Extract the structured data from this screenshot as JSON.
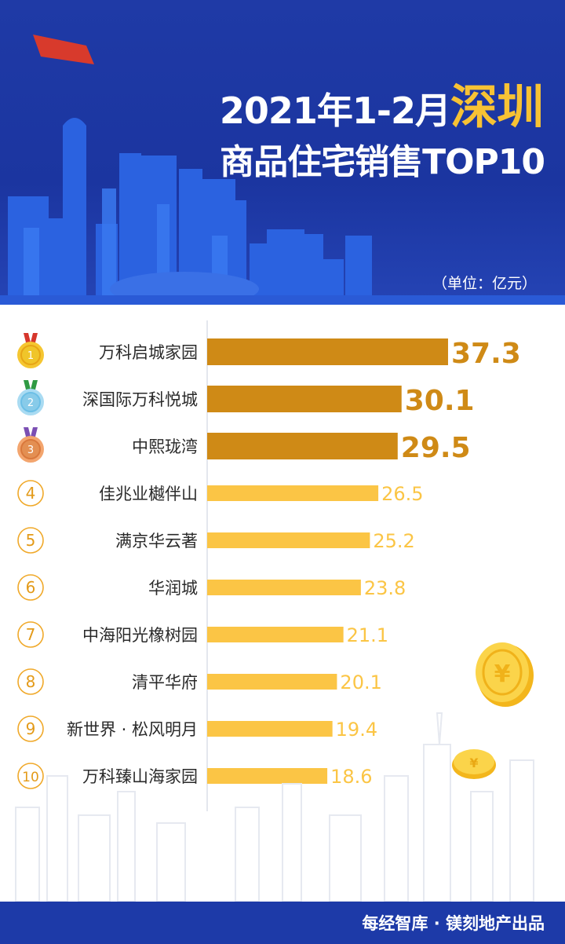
{
  "header": {
    "title_prefix": "2021年1-2月",
    "title_highlight": "深圳",
    "title_line2": "商品住宅销售TOP10",
    "unit": "（单位：亿元）"
  },
  "colors": {
    "header_bg": "#1f3aa6",
    "title_highlight": "#f7c234",
    "top3_bar": "#cf8a16",
    "other_bar": "#fbc545",
    "footer_bg": "#1d3aa8"
  },
  "chart_data": {
    "type": "bar",
    "orientation": "horizontal",
    "categories": [
      "万科启城家园",
      "深国际万科悦城",
      "中熙珑湾",
      "佳兆业樾伴山",
      "满京华云著",
      "华润城",
      "中海阳光橡树园",
      "清平华府",
      "新世界 · 松风明月",
      "万科臻山海家园"
    ],
    "ranks": [
      "1",
      "2",
      "3",
      "4",
      "5",
      "6",
      "7",
      "8",
      "9",
      "10"
    ],
    "values": [
      37.3,
      30.1,
      29.5,
      26.5,
      25.2,
      23.8,
      21.1,
      20.1,
      19.4,
      18.6
    ],
    "value_labels": [
      "37.3",
      "30.1",
      "29.5",
      "26.5",
      "25.2",
      "23.8",
      "21.1",
      "20.1",
      "19.4",
      "18.6"
    ],
    "medal_icons": [
      "gold-medal-icon",
      "silver-medal-icon",
      "bronze-medal-icon"
    ],
    "grid": false
  },
  "footer": {
    "credit": "每经智库 · 镁刻地产出品"
  }
}
